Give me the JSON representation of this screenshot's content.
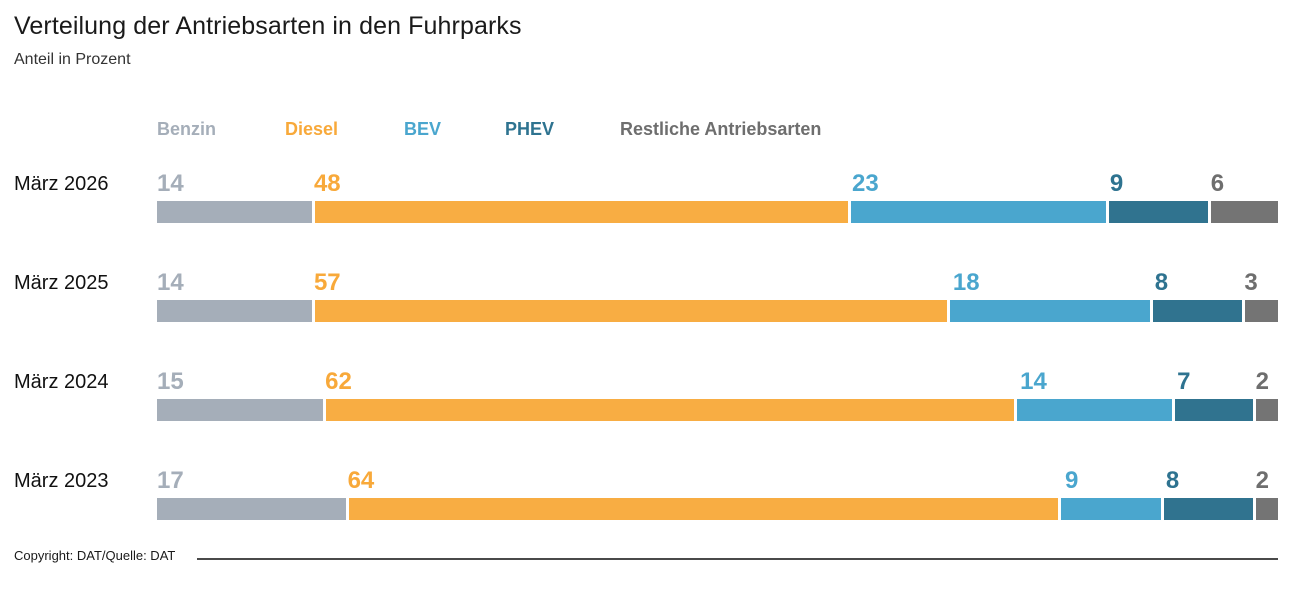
{
  "page": {
    "title": "Verteilung der Antriebsarten in den Fuhrparks",
    "subtitle": "Anteil in Prozent",
    "footer": "Copyright: DAT/Quelle: DAT"
  },
  "chart_data": {
    "type": "bar",
    "variant": "horizontal-stacked",
    "unit": "percent",
    "title": "Verteilung der Antriebsarten in den Fuhrparks",
    "subtitle": "Anteil in Prozent",
    "legend_position": "top",
    "value_labels": "at-segment-start",
    "xlim": [
      0,
      100
    ],
    "categories": [
      "März 2026",
      "März 2025",
      "März 2024",
      "März 2023"
    ],
    "series": [
      {
        "name": "Benzin",
        "color": "#a5aeb9",
        "label_color": "#a5aeb9",
        "values": [
          14,
          14,
          15,
          17
        ]
      },
      {
        "name": "Diesel",
        "color": "#f8ad43",
        "label_color": "#f8a93a",
        "values": [
          48,
          57,
          62,
          64
        ]
      },
      {
        "name": "BEV",
        "color": "#4aa6ce",
        "label_color": "#4aa6ce",
        "values": [
          23,
          18,
          14,
          9
        ]
      },
      {
        "name": "PHEV",
        "color": "#30738f",
        "label_color": "#2e7390",
        "values": [
          9,
          8,
          7,
          8
        ]
      },
      {
        "name": "Restliche Antriebsarten",
        "color": "#747474",
        "label_color": "#6e6e6e",
        "values": [
          6,
          3,
          2,
          2
        ]
      }
    ]
  }
}
